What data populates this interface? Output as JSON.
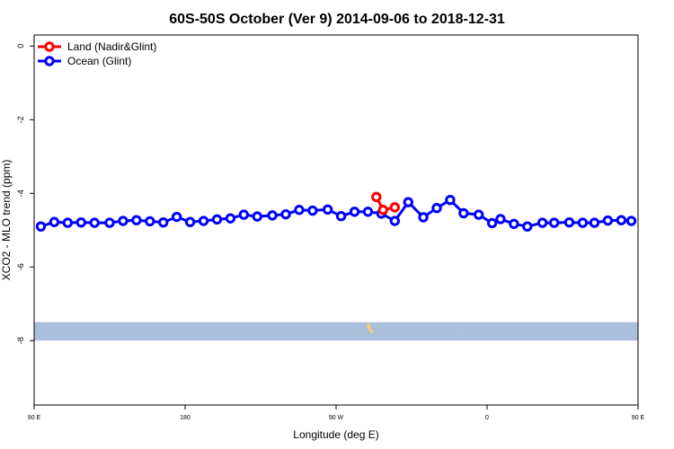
{
  "chart_data": {
    "type": "line",
    "title": "60S-50S October (Ver 9)   2014-09-06 to 2018-12-31",
    "xlabel": "Longitude (deg E)",
    "ylabel": "XCO2 - MLO trend (ppm)",
    "xlim": [
      90,
      450
    ],
    "ylim": [
      -9.75,
      0.3
    ],
    "xticks": [
      {
        "value": 90,
        "label": "90 E"
      },
      {
        "value": 180,
        "label": "180"
      },
      {
        "value": 270,
        "label": "90 W"
      },
      {
        "value": 360,
        "label": "0"
      },
      {
        "value": 450,
        "label": "90 E"
      }
    ],
    "yticks": [
      {
        "value": 0,
        "label": "0"
      },
      {
        "value": -2,
        "label": "-2"
      },
      {
        "value": -4,
        "label": "-4"
      },
      {
        "value": -6,
        "label": "-6"
      },
      {
        "value": -8,
        "label": "-8"
      }
    ],
    "grid": false,
    "legend_position": "top-left",
    "band": {
      "ymin": -8.0,
      "ymax": -7.5,
      "color": "#a9bfdc"
    },
    "land_patch_color": "#f2d06b",
    "series": [
      {
        "name": "Land (Nadir&Glint)",
        "color": "#ff0000",
        "x": [
          294,
          298,
          305
        ],
        "y": [
          -4.1,
          -4.45,
          -4.38
        ]
      },
      {
        "name": "Ocean (Glint)",
        "color": "#0000ff",
        "x": [
          94,
          102,
          110,
          118,
          126,
          135,
          143,
          151,
          159,
          167,
          175,
          183,
          191,
          199,
          207,
          215,
          223,
          232,
          240,
          248,
          256,
          265,
          273,
          281,
          289,
          297,
          305,
          313,
          322,
          330,
          338,
          346,
          355,
          363,
          368,
          376,
          384,
          393,
          400,
          409,
          417,
          424,
          432,
          440,
          446
        ],
        "y": [
          -4.9,
          -4.78,
          -4.8,
          -4.79,
          -4.8,
          -4.8,
          -4.75,
          -4.73,
          -4.76,
          -4.79,
          -4.64,
          -4.78,
          -4.75,
          -4.71,
          -4.68,
          -4.58,
          -4.63,
          -4.6,
          -4.57,
          -4.45,
          -4.47,
          -4.44,
          -4.62,
          -4.5,
          -4.5,
          -4.55,
          -4.75,
          -4.24,
          -4.65,
          -4.4,
          -4.18,
          -4.54,
          -4.58,
          -4.81,
          -4.7,
          -4.83,
          -4.9,
          -4.8,
          -4.8,
          -4.79,
          -4.8,
          -4.8,
          -4.74,
          -4.73,
          -4.75
        ]
      }
    ]
  }
}
